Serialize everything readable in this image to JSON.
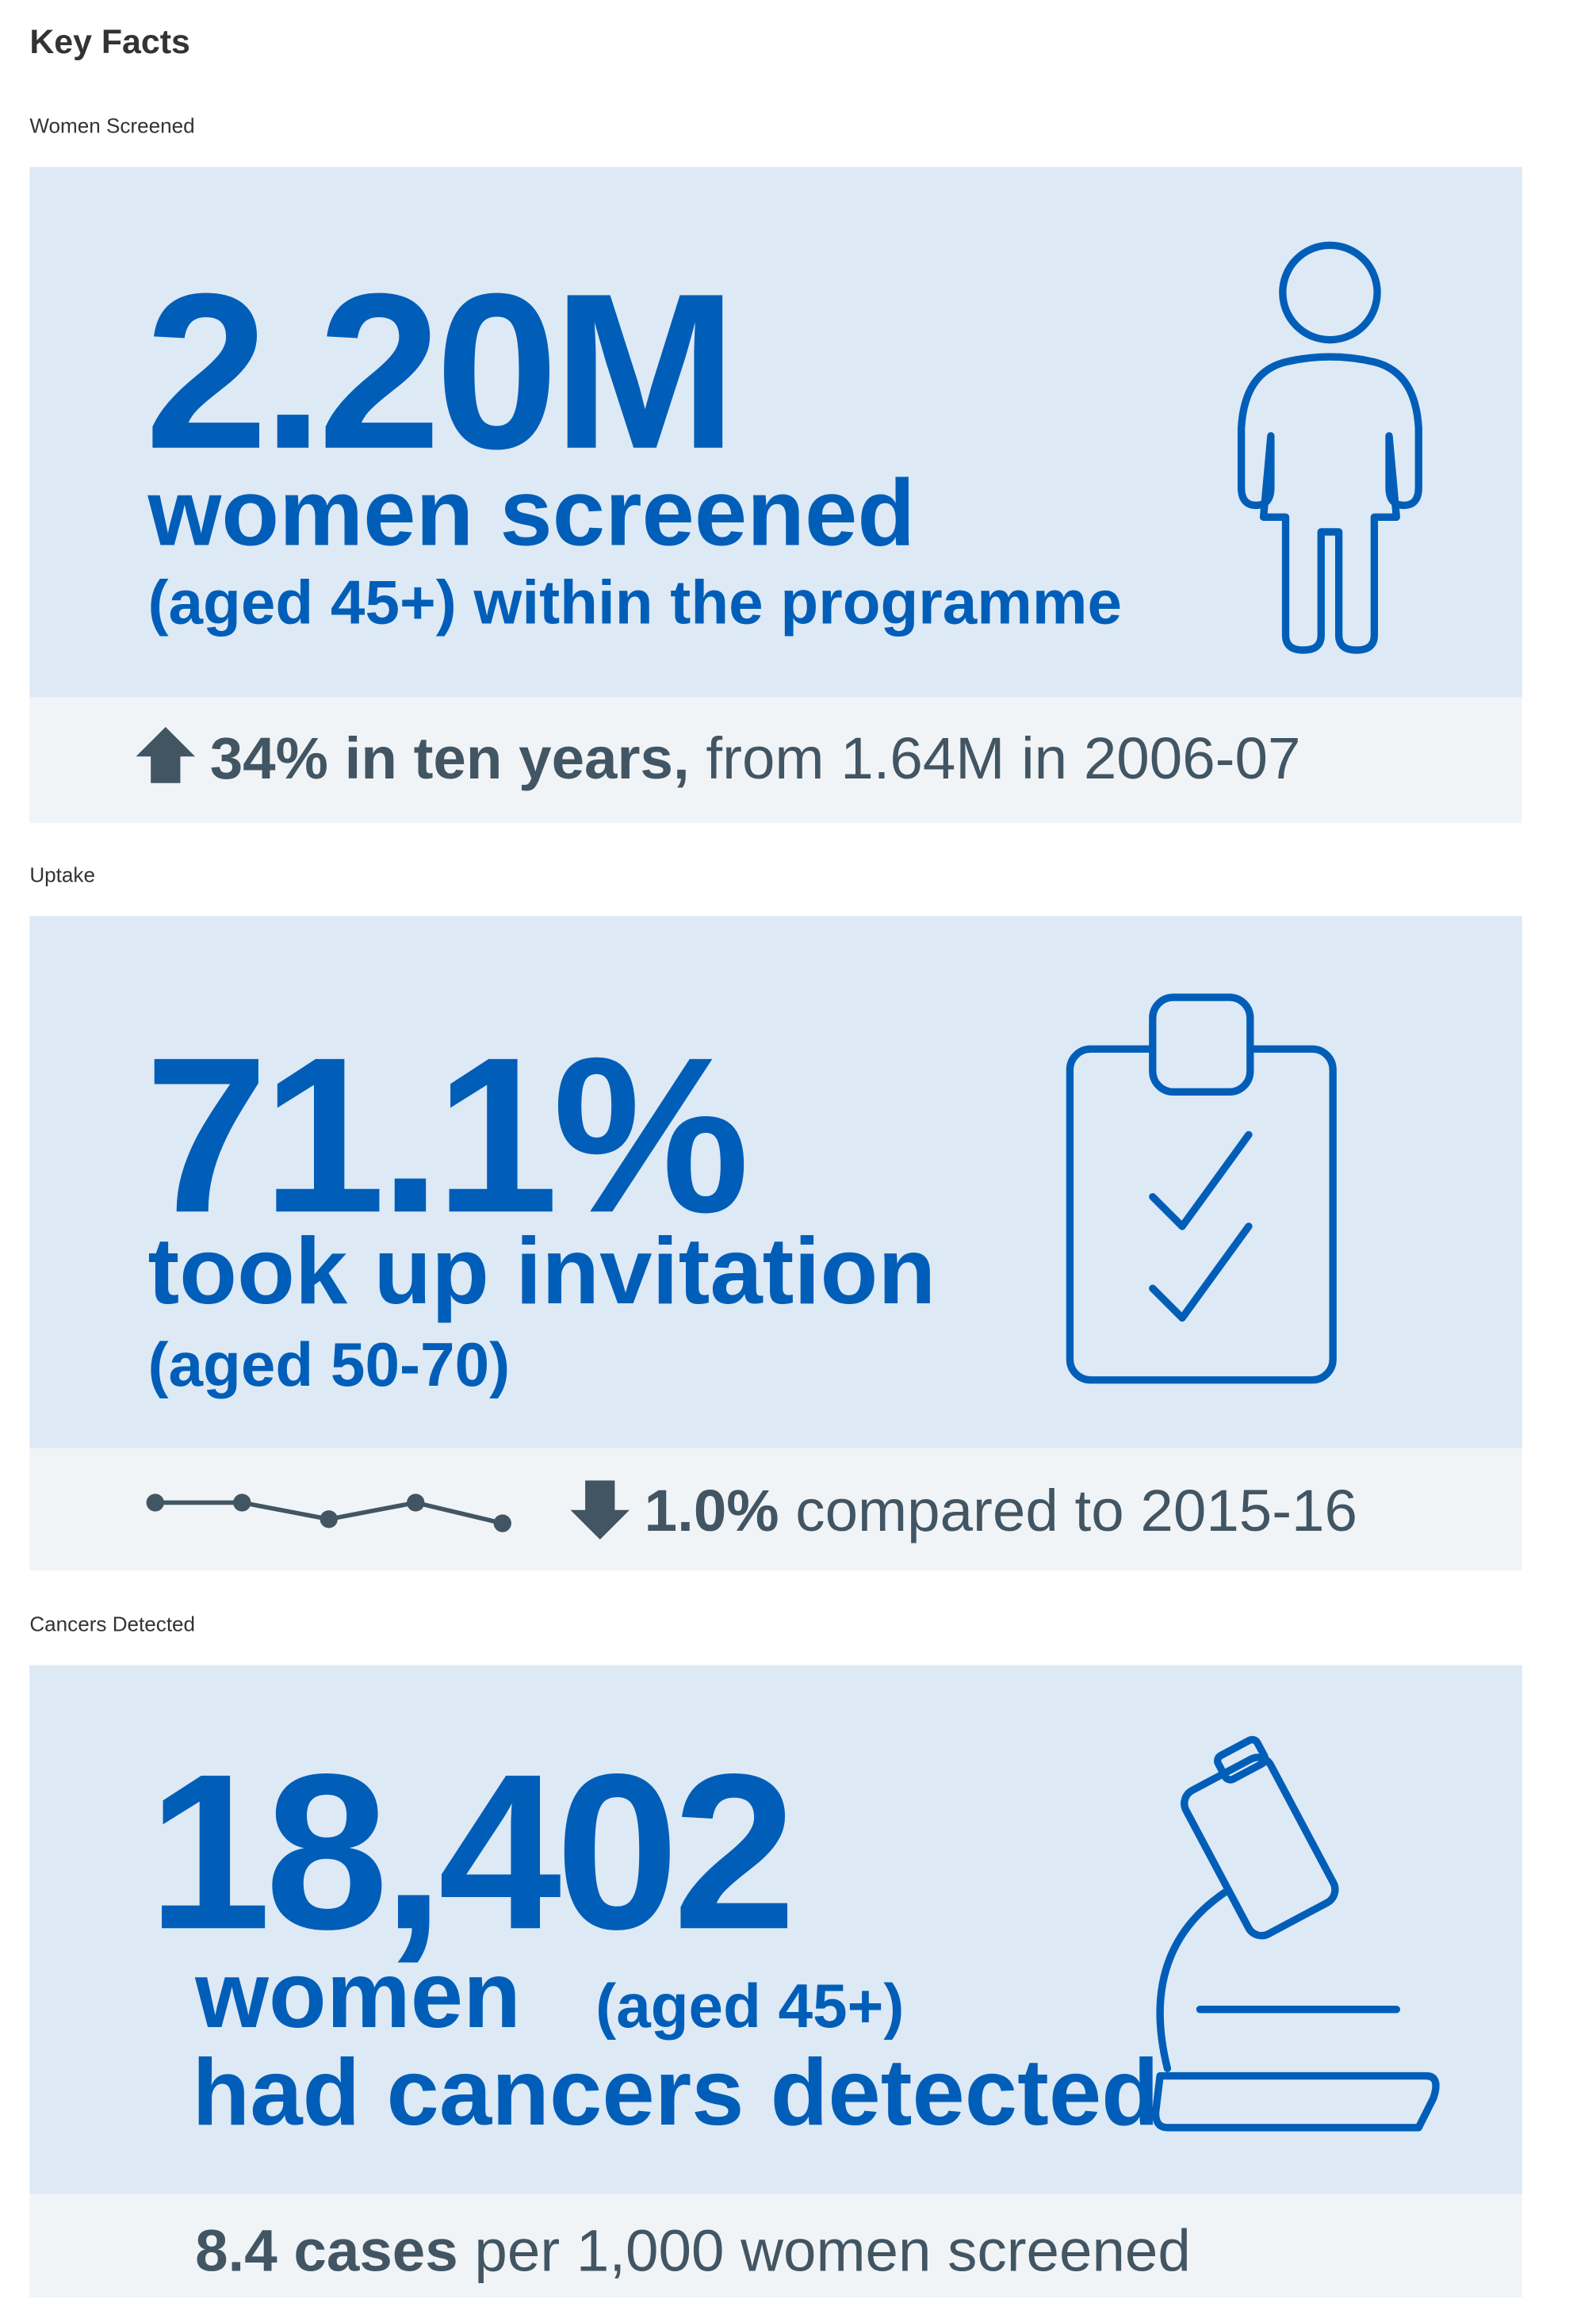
{
  "page_title": "Key Facts",
  "sections": [
    {
      "label": "Women Screened",
      "headline": "2.20M",
      "line1": "women screened",
      "line2": "(aged 45+) within the programme",
      "footer": {
        "bold": "34% in ten years,",
        "rest": "from 1.64M in 2006-07"
      }
    },
    {
      "label": "Uptake",
      "headline": "71.1%",
      "line1": "took up invitation",
      "line2": "(aged 50-70)",
      "trend": [
        72.1,
        72.1,
        71.3,
        72.1,
        71.1
      ],
      "footer": {
        "bold": "1.0%",
        "rest": "compared to 2015-16"
      }
    },
    {
      "label": "Cancers Detected",
      "headline": "18,402",
      "line1": "women",
      "line1_note": "(aged 45+)",
      "line2": "had cancers detected",
      "footer": {
        "bold": "8.4 cases",
        "rest": "per 1,000 women screened"
      }
    }
  ]
}
